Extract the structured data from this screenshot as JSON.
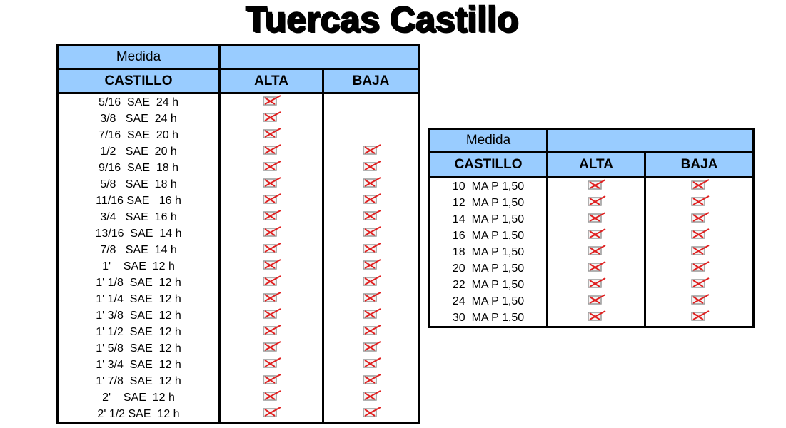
{
  "title": "Tuercas Castillo",
  "colors": {
    "header_bg": "#99ccff",
    "mark": "#e02020"
  },
  "left_table": {
    "header_top": "Medida",
    "headers": [
      "CASTILLO",
      "ALTA",
      "BAJA"
    ],
    "rows": [
      {
        "size": "5/16  SAE  24 h",
        "alta": true,
        "baja": false
      },
      {
        "size": "3/8   SAE  24 h",
        "alta": true,
        "baja": false
      },
      {
        "size": "7/16  SAE  20 h",
        "alta": true,
        "baja": false
      },
      {
        "size": "1/2   SAE  20 h",
        "alta": true,
        "baja": true
      },
      {
        "size": "9/16  SAE  18 h",
        "alta": true,
        "baja": true
      },
      {
        "size": "5/8   SAE  18 h",
        "alta": true,
        "baja": true
      },
      {
        "size": "11/16 SAE   16 h",
        "alta": true,
        "baja": true
      },
      {
        "size": "3/4   SAE  16 h",
        "alta": true,
        "baja": true
      },
      {
        "size": "13/16  SAE  14 h",
        "alta": true,
        "baja": true
      },
      {
        "size": "7/8   SAE  14 h",
        "alta": true,
        "baja": true
      },
      {
        "size": "1'    SAE  12 h",
        "alta": true,
        "baja": true
      },
      {
        "size": "1' 1/8  SAE  12 h",
        "alta": true,
        "baja": true
      },
      {
        "size": "1' 1/4  SAE  12 h",
        "alta": true,
        "baja": true
      },
      {
        "size": "1' 3/8  SAE  12 h",
        "alta": true,
        "baja": true
      },
      {
        "size": "1' 1/2  SAE  12 h",
        "alta": true,
        "baja": true
      },
      {
        "size": "1' 5/8  SAE  12 h",
        "alta": true,
        "baja": true
      },
      {
        "size": "1' 3/4  SAE  12 h",
        "alta": true,
        "baja": true
      },
      {
        "size": "1' 7/8  SAE  12 h",
        "alta": true,
        "baja": true
      },
      {
        "size": "2'    SAE  12 h",
        "alta": true,
        "baja": true
      },
      {
        "size": "2' 1/2 SAE  12 h",
        "alta": true,
        "baja": true
      }
    ]
  },
  "right_table": {
    "header_top": "Medida",
    "headers": [
      "CASTILLO",
      "ALTA",
      "BAJA"
    ],
    "rows": [
      {
        "size": "10  MA P 1,50",
        "alta": true,
        "baja": true
      },
      {
        "size": "12  MA P 1,50",
        "alta": true,
        "baja": true
      },
      {
        "size": "14  MA P 1,50",
        "alta": true,
        "baja": true
      },
      {
        "size": "16  MA P 1,50",
        "alta": true,
        "baja": true
      },
      {
        "size": "18  MA P 1,50",
        "alta": true,
        "baja": true
      },
      {
        "size": "20  MA P 1,50",
        "alta": true,
        "baja": true
      },
      {
        "size": "22  MA P 1,50",
        "alta": true,
        "baja": true
      },
      {
        "size": "24  MA P 1,50",
        "alta": true,
        "baja": true
      },
      {
        "size": "30  MA P 1,50",
        "alta": true,
        "baja": true
      }
    ]
  }
}
